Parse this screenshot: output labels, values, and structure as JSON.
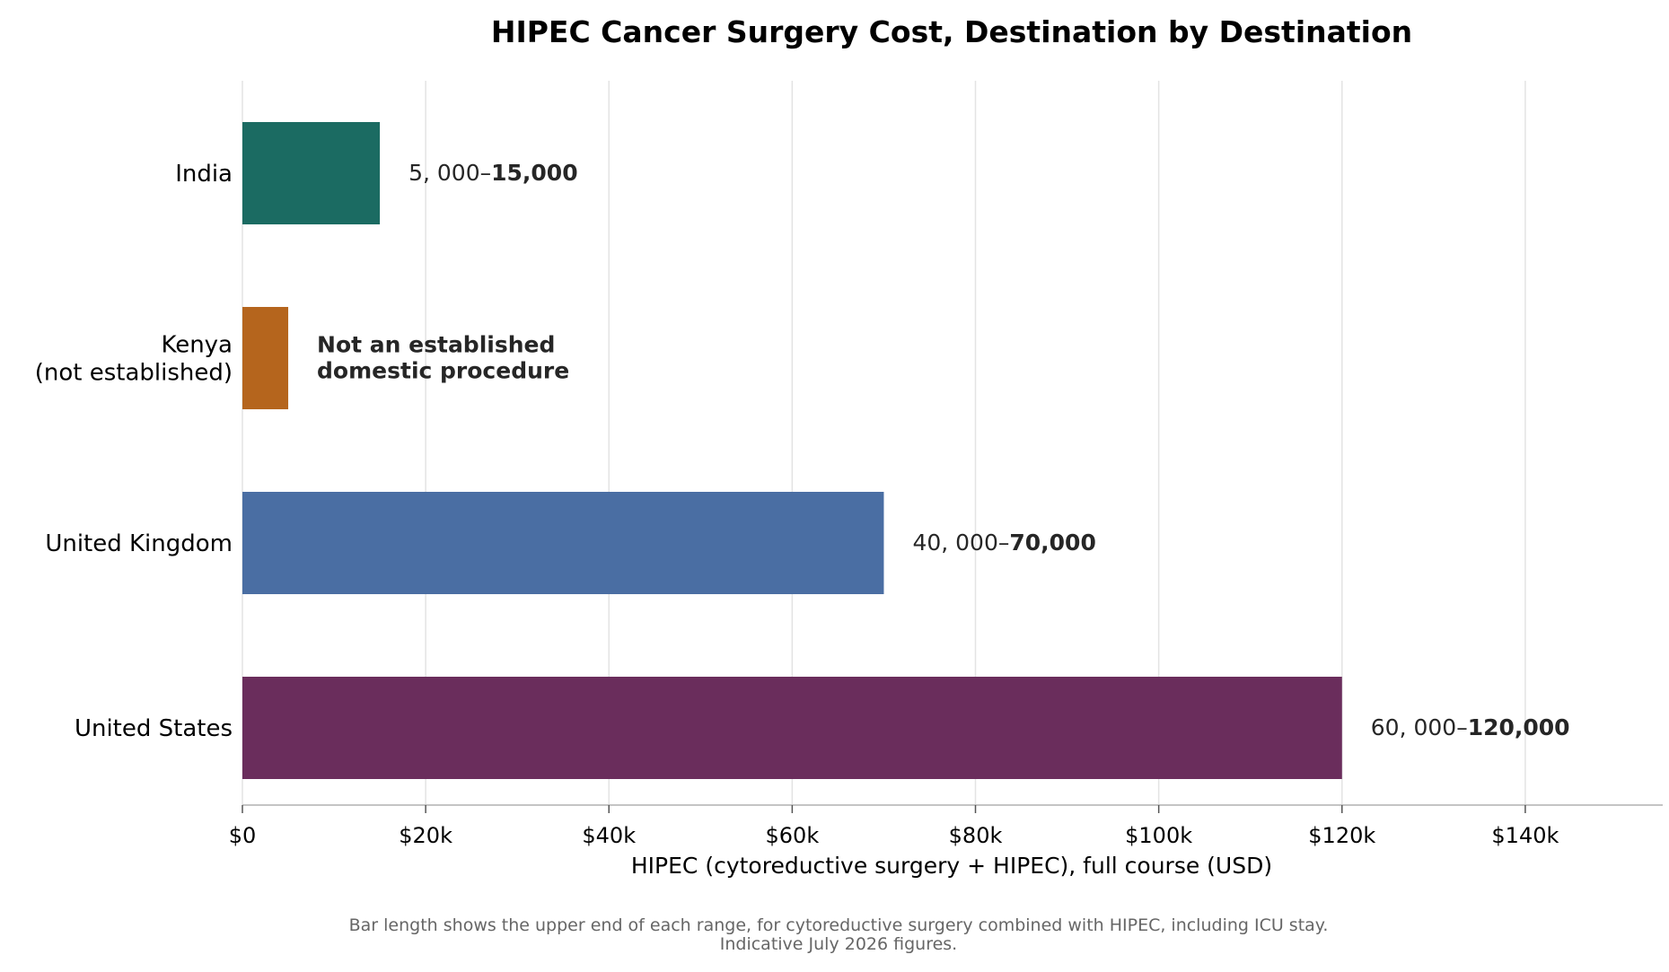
{
  "chart_data": {
    "type": "bar",
    "orientation": "horizontal",
    "title": "HIPEC Cancer Surgery Cost, Destination by Destination",
    "xlabel": "HIPEC (cytoreductive surgery + HIPEC), full course (USD)",
    "ylabel": "",
    "xlim": [
      0,
      155000
    ],
    "xticks": [
      {
        "value": 0,
        "label": "$0"
      },
      {
        "value": 20000,
        "label": "$20k"
      },
      {
        "value": 40000,
        "label": "$40k"
      },
      {
        "value": 60000,
        "label": "$60k"
      },
      {
        "value": 80000,
        "label": "$80k"
      },
      {
        "value": 100000,
        "label": "$100k"
      },
      {
        "value": 120000,
        "label": "$120k"
      },
      {
        "value": 140000,
        "label": "$140k"
      }
    ],
    "grid": "vertical",
    "legend": "none",
    "bars": [
      {
        "category": [
          "India"
        ],
        "low": 5000,
        "value": 15000,
        "label_low": "5, 000–",
        "label_high": "15,000",
        "note": [],
        "color": "#1b6b62"
      },
      {
        "category": [
          "Kenya",
          "(not established)"
        ],
        "low": null,
        "value": 5000,
        "label_low": "",
        "label_high": "",
        "note": [
          "Not an established",
          "domestic procedure"
        ],
        "color": "#b5651d"
      },
      {
        "category": [
          "United Kingdom"
        ],
        "low": 40000,
        "value": 70000,
        "label_low": "40, 000–",
        "label_high": "70,000",
        "note": [],
        "color": "#4a6ea3"
      },
      {
        "category": [
          "United States"
        ],
        "low": 60000,
        "value": 120000,
        "label_low": "60, 000–",
        "label_high": "120,000",
        "note": [],
        "color": "#6a2d5c"
      }
    ],
    "footnote": [
      "Bar length shows the upper end of each range, for cytoreductive surgery combined with HIPEC, including ICU stay.",
      "Indicative July 2026 figures."
    ]
  }
}
